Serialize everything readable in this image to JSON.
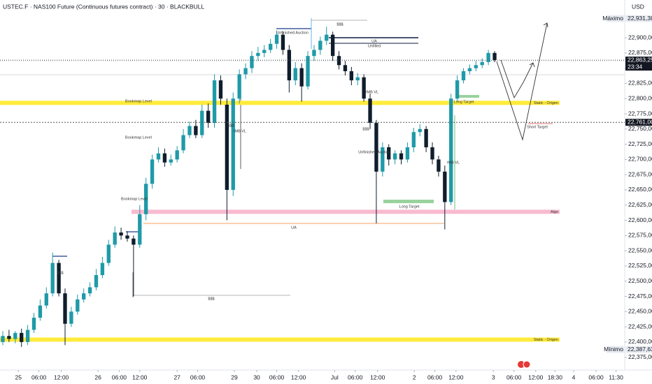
{
  "chart_data": {
    "type": "candlestick",
    "title": "USTEC.F · NAS100 Future (Continuous futures contract) · 30 · BLACKBULL",
    "currency": "USD",
    "up_color": "#1f9aa8",
    "down_color": "#0f1d2c",
    "x": [
      0,
      1,
      2,
      3,
      4,
      5,
      6,
      7,
      8,
      9,
      10,
      11,
      12,
      13,
      14,
      15,
      16,
      17,
      18,
      19,
      20,
      21,
      22,
      23,
      24,
      25,
      26,
      27,
      28,
      29,
      30,
      31,
      32,
      33,
      34,
      35,
      36,
      37,
      38,
      39,
      40,
      41,
      42,
      43,
      44,
      45,
      46,
      47,
      48,
      49,
      50,
      51,
      52,
      53,
      54,
      55,
      56,
      57,
      58,
      59,
      60,
      61,
      62,
      63,
      64,
      65,
      66,
      67,
      68,
      69,
      70,
      71,
      72,
      73,
      74,
      75,
      76,
      77,
      78,
      79
    ],
    "open": [
      22400,
      22410,
      22405,
      22415,
      22400,
      22420,
      22440,
      22460,
      22480,
      22530,
      22480,
      22430,
      22450,
      22470,
      22480,
      22490,
      22510,
      22530,
      22560,
      22580,
      22575,
      22570,
      22560,
      22610,
      22660,
      22700,
      22710,
      22695,
      22700,
      22715,
      22740,
      22755,
      22740,
      22780,
      22760,
      22830,
      22790,
      22650,
      22800,
      22840,
      22850,
      22870,
      22875,
      22880,
      22890,
      22905,
      22880,
      22830,
      22850,
      22820,
      22870,
      22880,
      22895,
      22905,
      22870,
      22855,
      22845,
      22830,
      22835,
      22800,
      22760,
      22680,
      22720,
      22700,
      22710,
      22700,
      22720,
      22745,
      22750,
      22720,
      22700,
      22680,
      22630,
      22800,
      22830,
      22845,
      22850,
      22855,
      22860,
      22875
    ],
    "high": [
      22418,
      22420,
      22418,
      22422,
      22428,
      22448,
      22470,
      22490,
      22547,
      22535,
      22488,
      22458,
      22478,
      22488,
      22498,
      22520,
      22540,
      22568,
      22590,
      22588,
      22582,
      22575,
      22625,
      22670,
      22708,
      22720,
      22718,
      22708,
      22722,
      22750,
      22762,
      22765,
      22790,
      22792,
      22840,
      22838,
      22800,
      22810,
      22848,
      22858,
      22878,
      22885,
      22888,
      22898,
      22912,
      22910,
      22888,
      22860,
      22858,
      22878,
      22888,
      22902,
      22918,
      22910,
      22878,
      22862,
      22852,
      22842,
      22840,
      22808,
      22765,
      22728,
      22725,
      22715,
      22715,
      22728,
      22752,
      22758,
      22755,
      22728,
      22706,
      22690,
      22808,
      22838,
      22850,
      22856,
      22862,
      22866,
      22880,
      22878
    ],
    "low": [
      22395,
      22400,
      22398,
      22392,
      22395,
      22415,
      22435,
      22455,
      22475,
      22475,
      22395,
      22425,
      22445,
      22465,
      22475,
      22485,
      22505,
      22525,
      22555,
      22568,
      22565,
      22475,
      22555,
      22600,
      22652,
      22695,
      22688,
      22690,
      22695,
      22710,
      22735,
      22735,
      22735,
      22752,
      22752,
      22790,
      22600,
      22640,
      22792,
      22832,
      22842,
      22862,
      22868,
      22875,
      22882,
      22872,
      22810,
      22822,
      22795,
      22815,
      22862,
      22872,
      22888,
      22862,
      22848,
      22838,
      22822,
      22822,
      22795,
      22750,
      22595,
      22672,
      22690,
      22692,
      22692,
      22695,
      22712,
      22738,
      22712,
      22692,
      22672,
      22585,
      22625,
      22795,
      22825,
      22840,
      22845,
      22850,
      22855,
      22860
    ],
    "close": [
      22410,
      22405,
      22415,
      22400,
      22420,
      22440,
      22460,
      22480,
      22530,
      22480,
      22430,
      22450,
      22470,
      22480,
      22490,
      22510,
      22530,
      22560,
      22580,
      22575,
      22570,
      22560,
      22610,
      22660,
      22700,
      22710,
      22695,
      22700,
      22715,
      22740,
      22755,
      22740,
      22780,
      22760,
      22830,
      22800,
      22650,
      22800,
      22840,
      22850,
      22870,
      22875,
      22880,
      22890,
      22905,
      22880,
      22830,
      22850,
      22820,
      22870,
      22880,
      22895,
      22905,
      22870,
      22855,
      22845,
      22830,
      22835,
      22800,
      22760,
      22680,
      22720,
      22700,
      22710,
      22700,
      22720,
      22745,
      22750,
      22720,
      22700,
      22680,
      22630,
      22800,
      22830,
      22845,
      22850,
      22855,
      22860,
      22875,
      22863.25
    ],
    "xlim": [
      -0.45,
      99.9
    ],
    "ylim": [
      22354,
      22962
    ],
    "xticks": [
      {
        "value": 2.5,
        "label": "25"
      },
      {
        "value": 5.8,
        "label": "06:00"
      },
      {
        "value": 9.4,
        "label": "12:00"
      },
      {
        "value": 15.3,
        "label": "26"
      },
      {
        "value": 18.7,
        "label": "06:00"
      },
      {
        "value": 22.0,
        "label": "12:00"
      },
      {
        "value": 28.0,
        "label": "27"
      },
      {
        "value": 31.3,
        "label": "06:00"
      },
      {
        "value": 37.2,
        "label": "29"
      },
      {
        "value": 40.8,
        "label": "30"
      },
      {
        "value": 44.0,
        "label": "06:00"
      },
      {
        "value": 47.5,
        "label": "12:00"
      },
      {
        "value": 53.3,
        "label": "Jul"
      },
      {
        "value": 56.6,
        "label": "06:00"
      },
      {
        "value": 60.2,
        "label": "12:00"
      },
      {
        "value": 66.1,
        "label": "2"
      },
      {
        "value": 69.4,
        "label": "06:00"
      },
      {
        "value": 72.8,
        "label": "12:00"
      },
      {
        "value": 78.8,
        "label": "3"
      },
      {
        "value": 82.1,
        "label": "06:00"
      },
      {
        "value": 85.6,
        "label": "12:00"
      },
      {
        "value": 88.7,
        "label": "18:30"
      },
      {
        "value": 91.7,
        "label": "4"
      },
      {
        "value": 95.3,
        "label": "06:00"
      },
      {
        "value": 98.5,
        "label": "11:30"
      }
    ],
    "yticks": [
      {
        "value": 22375,
        "label": "22,375,00"
      },
      {
        "value": 22400,
        "label": "22,400,00"
      },
      {
        "value": 22425,
        "label": "22,425,00"
      },
      {
        "value": 22450,
        "label": "22,450,00"
      },
      {
        "value": 22475,
        "label": "22,475,00"
      },
      {
        "value": 22500,
        "label": "22,500,00"
      },
      {
        "value": 22525,
        "label": "22,525,00"
      },
      {
        "value": 22550,
        "label": "22,550,00"
      },
      {
        "value": 22575,
        "label": "22,575,00"
      },
      {
        "value": 22600,
        "label": "22,600,00"
      },
      {
        "value": 22625,
        "label": "22,625,00"
      },
      {
        "value": 22650,
        "label": "22,650,00"
      },
      {
        "value": 22675,
        "label": "22,675,00"
      },
      {
        "value": 22700,
        "label": "22,700,00"
      },
      {
        "value": 22725,
        "label": "22,725,00"
      },
      {
        "value": 22750,
        "label": "22,750,00"
      },
      {
        "value": 22775,
        "label": "22,775,00"
      },
      {
        "value": 22800,
        "label": "22,800,00"
      },
      {
        "value": 22825,
        "label": "22,825,00"
      },
      {
        "value": 22850,
        "label": "22,850,00"
      },
      {
        "value": 22875,
        "label": "22,875,00"
      },
      {
        "value": 22900,
        "label": "22,900,00"
      }
    ],
    "price_markers": [
      {
        "name": "Máximo",
        "value": 22931.38,
        "label": "22,931,38"
      },
      {
        "value": 22863.25,
        "label": "22,863,25",
        "sublabel": "23:34"
      },
      {
        "value": 22761,
        "label": "22,761,00"
      },
      {
        "name": "Mínimo",
        "value": 22387.63,
        "label": "22,387,63"
      }
    ],
    "levels": [
      {
        "label": "Static - Origen",
        "value": 22793,
        "color": "#ffeb3b"
      },
      {
        "label": "Algo",
        "value": 22614,
        "color": "#f8bbd0"
      },
      {
        "label": "Static - Origen",
        "value": 22404,
        "color": "#ffeb3b"
      }
    ],
    "annotations": [
      "Unfinished Auction",
      "$$$",
      "UA",
      "Unfilled",
      "Bookmap Level",
      "Bookmap Level",
      "Bookmap Level",
      "IMB VL",
      "IMB VL",
      "IMB VL",
      "$$$",
      "$$$",
      "$$$",
      "UA",
      "Long Target",
      "Long Target",
      "Short Target",
      "Unfinished Auction",
      "$$$"
    ]
  }
}
